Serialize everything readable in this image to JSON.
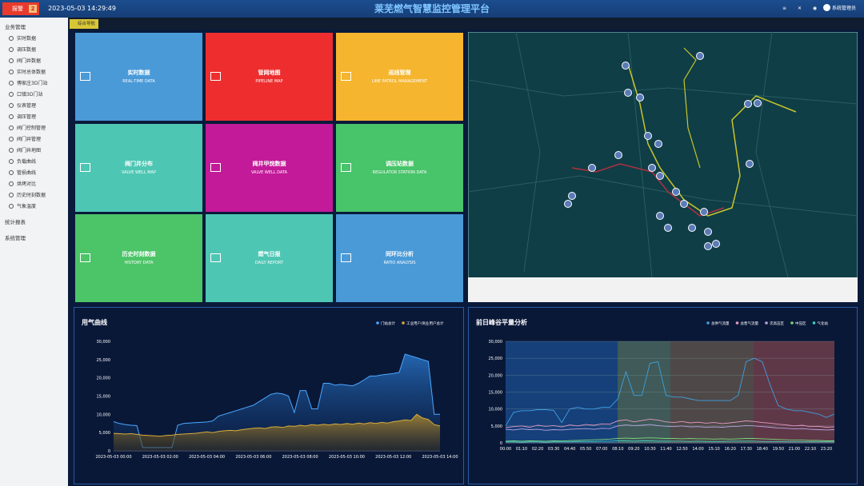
{
  "header": {
    "alarm_label": "报警",
    "alarm_count": "2",
    "datetime": "2023-05-03 14:29:49",
    "title": "莱芜燃气智慧监控管理平台",
    "user": "系统管理员"
  },
  "sidebar": [
    {
      "label": "业务管理",
      "items": [
        "实时数据",
        "调压数据",
        "阀门井数据",
        "实时总体数据",
        "傅家庄3D门站",
        "口镇3D门站",
        "仪表管理",
        "调压管理",
        "阀门控制管理",
        "阀门井管理",
        "阀门井地图",
        "负载曲线",
        "管损曲线",
        "烘烤对比",
        "历史时刻数据",
        "气象温度"
      ]
    },
    {
      "label": "统计报表"
    },
    {
      "label": "系统管理"
    }
  ],
  "tab": "综合导航",
  "tiles": [
    {
      "title": "实时数据",
      "subtitle": "REAL-TIME DATA",
      "color": "#4a9ad8"
    },
    {
      "title": "管网地图",
      "subtitle": "PIPELINE MAP",
      "color": "#ee2e2e"
    },
    {
      "title": "巡线管理",
      "subtitle": "LINE PATROL MANAGEMENT",
      "color": "#f5b52e"
    },
    {
      "title": "阀门井分布",
      "subtitle": "VALVE WELL MAP",
      "color": "#4ec6b4"
    },
    {
      "title": "阀井甲烷数据",
      "subtitle": "VALVE WELL DATA",
      "color": "#c21a98"
    },
    {
      "title": "调压站数据",
      "subtitle": "REGULATOR STATION DATA",
      "color": "#48c46a"
    },
    {
      "title": "历史时刻数据",
      "subtitle": "HISTORY DATA",
      "color": "#4cc468"
    },
    {
      "title": "燃气日报",
      "subtitle": "DAILY REPORT",
      "color": "#4ec6b4"
    },
    {
      "title": "同环比分析",
      "subtitle": "RATIO ANALYSIS",
      "color": "#4a9ad8"
    }
  ],
  "chart_data": [
    {
      "type": "area",
      "title": "用气曲线",
      "categories": [
        "2023-05-03 00:00",
        null,
        null,
        null,
        null,
        null,
        null,
        null,
        "2023-05-03 02:00",
        null,
        null,
        null,
        null,
        null,
        null,
        null,
        "2023-05-03 04:00",
        null,
        null,
        null,
        null,
        null,
        null,
        null,
        "2023-05-03 06:00",
        null,
        null,
        null,
        null,
        null,
        null,
        null,
        "2023-05-03 08:00",
        null,
        null,
        null,
        null,
        null,
        null,
        null,
        "2023-05-03 10:00",
        null,
        null,
        null,
        null,
        null,
        null,
        null,
        "2023-05-03 12:00",
        null,
        null,
        null,
        null,
        null,
        null,
        null,
        "2023-05-03 14:00"
      ],
      "series": [
        {
          "name": "门站总计",
          "color": "#4aa8ff",
          "values": [
            8000,
            7500,
            7200,
            7000,
            6900,
            900,
            900,
            900,
            900,
            900,
            900,
            7000,
            7500,
            7600,
            7700,
            7800,
            7900,
            8200,
            9500,
            10000,
            10500,
            11000,
            11500,
            12000,
            12500,
            13500,
            14500,
            15500,
            15800,
            15600,
            15000,
            10500,
            16500,
            16500,
            11500,
            11500,
            18500,
            18500,
            18000,
            18200,
            18000,
            17800,
            18500,
            19500,
            20500,
            20500,
            20800,
            21000,
            21200,
            21500,
            26500,
            26000,
            25500,
            25000,
            24500,
            10000,
            10000
          ]
        },
        {
          "name": "工业用户/商业用户总计",
          "color": "#d8ac3a",
          "values": [
            4800,
            4700,
            4600,
            4700,
            4500,
            4300,
            4200,
            4100,
            4000,
            4200,
            4300,
            4500,
            4600,
            4700,
            4800,
            5000,
            5200,
            5000,
            5300,
            5500,
            5600,
            5500,
            5800,
            6000,
            6200,
            6300,
            6100,
            6500,
            6600,
            6400,
            6800,
            6700,
            7000,
            6800,
            7200,
            7000,
            7300,
            7100,
            7400,
            7200,
            7500,
            7300,
            7600,
            7400,
            7700,
            7500,
            7800,
            7600,
            8000,
            8200,
            8500,
            8300,
            10000,
            9000,
            8600,
            7200,
            6800
          ]
        }
      ],
      "ylim": [
        0,
        30000
      ],
      "yticks": [
        0,
        {
          "value": 5000,
          "label": "5,000"
        },
        {
          "value": 10000,
          "label": "10,000"
        },
        {
          "value": 15000,
          "label": "15,000"
        },
        {
          "value": 20000,
          "label": "20,000"
        },
        {
          "value": 25000,
          "label": "25,000"
        },
        {
          "value": 30000,
          "label": "30,000"
        }
      ],
      "grid": false
    },
    {
      "type": "line",
      "title": "前日峰谷平量分析",
      "categories": [
        "00:00",
        null,
        "01:10",
        null,
        "02:20",
        null,
        "03:30",
        null,
        "04:40",
        null,
        "05:50",
        null,
        "07:00",
        null,
        "08:10",
        null,
        "09:20",
        null,
        "10:30",
        null,
        "11:40",
        null,
        "12:50",
        null,
        "14:00",
        null,
        "15:10",
        null,
        "16:20",
        null,
        "17:30",
        null,
        "18:40",
        null,
        "19:50",
        null,
        "21:00",
        null,
        "22:10",
        null,
        "23:20",
        null
      ],
      "series": [
        {
          "name": "总供气流量",
          "color": "#3fa0e0",
          "values": [
            5000,
            9000,
            9500,
            9500,
            9800,
            9800,
            9600,
            6000,
            10000,
            10500,
            10000,
            10000,
            10500,
            10500,
            13000,
            21000,
            14000,
            14000,
            23500,
            24000,
            14000,
            13500,
            13500,
            13000,
            12500,
            12500,
            12500,
            12500,
            12500,
            14000,
            24000,
            25000,
            24000,
            17000,
            11000,
            10000,
            9500,
            9500,
            9000,
            8500,
            7500,
            8500
          ]
        },
        {
          "name": "总售气流量",
          "color": "#e49ac0",
          "values": [
            4500,
            4800,
            5000,
            4600,
            5200,
            4900,
            5100,
            4700,
            5300,
            5000,
            5400,
            5200,
            5600,
            5500,
            6500,
            6800,
            6200,
            6600,
            7000,
            6700,
            6200,
            6000,
            6300,
            5900,
            6100,
            5800,
            6000,
            5700,
            5900,
            6200,
            6500,
            6300,
            6000,
            5800,
            5500,
            5300,
            5000,
            5200,
            4800,
            4900,
            4600,
            4700
          ]
        },
        {
          "name": "次高压区",
          "color": "#b6a4e0",
          "values": [
            4000,
            3800,
            4100,
            3900,
            4000,
            3700,
            3900,
            3800,
            4000,
            4100,
            4200,
            4000,
            4300,
            4200,
            5000,
            5300,
            5100,
            5200,
            5400,
            5100,
            4900,
            4800,
            5000,
            4700,
            4800,
            4600,
            4700,
            4600,
            4800,
            4900,
            5100,
            5000,
            4800,
            4600,
            4400,
            4300,
            4100,
            4200,
            4000,
            3900,
            3800,
            3900
          ]
        },
        {
          "name": "中压区",
          "color": "#7cd67c",
          "values": [
            500,
            600,
            500,
            600,
            550,
            500,
            600,
            550,
            650,
            700,
            800,
            900,
            1000,
            1100,
            1300,
            1400,
            1300,
            1400,
            1500,
            1400,
            1300,
            1300,
            1200,
            1300,
            1200,
            1200,
            1100,
            1200,
            1100,
            1200,
            1300,
            1300,
            1200,
            1100,
            1000,
            900,
            800,
            800,
            700,
            700,
            600,
            600
          ]
        },
        {
          "name": "气化站",
          "color": "#3fd0c0",
          "values": [
            300,
            300,
            200,
            300,
            300,
            200,
            300,
            300,
            300,
            400,
            400,
            400,
            500,
            500,
            600,
            600,
            500,
            600,
            600,
            500,
            500,
            500,
            500,
            400,
            500,
            400,
            400,
            400,
            500,
            500,
            500,
            500,
            400,
            400,
            400,
            300,
            300,
            300,
            300,
            300,
            300,
            300
          ]
        }
      ],
      "ylim": [
        0,
        30000
      ],
      "yticks": [
        0,
        {
          "value": 5000,
          "label": "5,000"
        },
        {
          "value": 10000,
          "label": "10,000"
        },
        {
          "value": 15000,
          "label": "15,000"
        },
        {
          "value": 20000,
          "label": "20,000"
        },
        {
          "value": 25000,
          "label": "25,000"
        },
        {
          "value": 30000,
          "label": "30,000"
        }
      ],
      "grid": true
    }
  ]
}
